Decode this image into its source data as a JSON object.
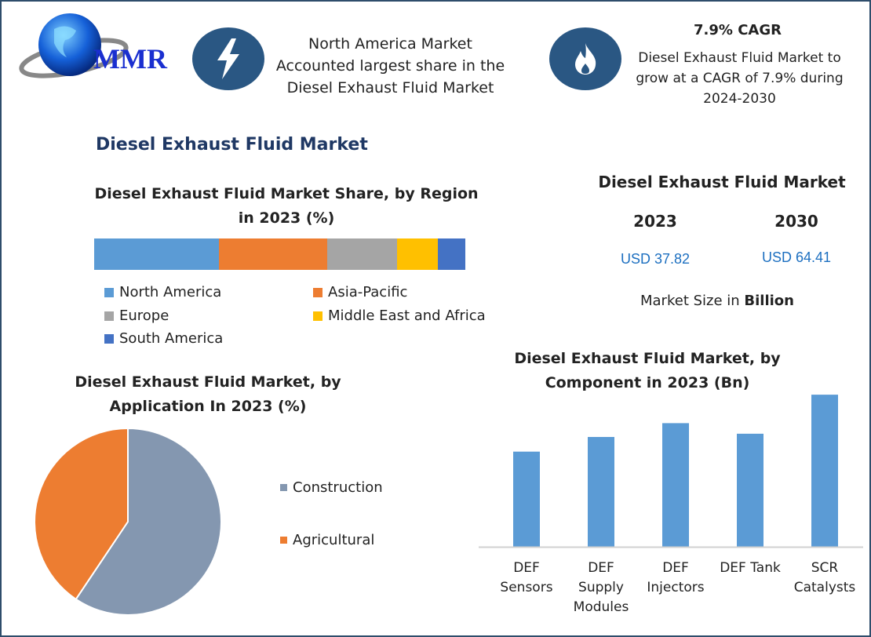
{
  "logo": {
    "text": "MMR"
  },
  "highlight_left": {
    "icon": "lightning-icon",
    "text": "North America Market Accounted largest share in the Diesel Exhaust Fluid Market"
  },
  "highlight_right": {
    "icon": "flame-icon",
    "title": "7.9% CAGR",
    "text": "Diesel Exhaust Fluid Market to grow at a CAGR of 7.9% during 2024-2030"
  },
  "main_title": "Diesel Exhaust Fluid Market",
  "market_size": {
    "title": "Diesel Exhaust Fluid Market",
    "year1": "2023",
    "year2": "2030",
    "value1": "USD 37.82",
    "value2": "USD 64.41",
    "note_prefix": "Market Size in ",
    "note_bold": "Billion"
  },
  "colors": {
    "accent": "#2a5783",
    "title": "#1f3864",
    "bar": "#5b9bd5"
  },
  "chart_data": [
    {
      "type": "bar",
      "orientation": "stacked-horizontal",
      "title": "Diesel Exhaust Fluid Market Share, by Region in 2023 (%)",
      "categories": [
        "North America",
        "Asia-Pacific",
        "Europe",
        "Middle East and Africa",
        "South America"
      ],
      "values": [
        33.6,
        29.2,
        18.8,
        11.0,
        7.4
      ],
      "colors": [
        "#5b9bd5",
        "#ed7d31",
        "#a5a5a5",
        "#ffc000",
        "#4472c4"
      ],
      "legend": "bottom"
    },
    {
      "type": "pie",
      "title": "Diesel Exhaust Fluid Market, by Application In 2023 (%)",
      "categories": [
        "Construction",
        "Agricultural"
      ],
      "values": [
        59.4,
        40.6
      ],
      "colors": [
        "#8497b0",
        "#ed7d31"
      ],
      "legend": "right"
    },
    {
      "type": "bar",
      "title": "Diesel Exhaust Fluid Market, by Component in 2023 (Bn)",
      "categories": [
        "DEF\nSensors",
        "DEF\nSupply\nModules",
        "DEF\nInjectors",
        "DEF Tank",
        "SCR\nCatalysts"
      ],
      "values": [
        11.7,
        13.5,
        15.2,
        13.9,
        18.7
      ],
      "ylim": [
        0,
        19
      ],
      "grid": false
    }
  ]
}
